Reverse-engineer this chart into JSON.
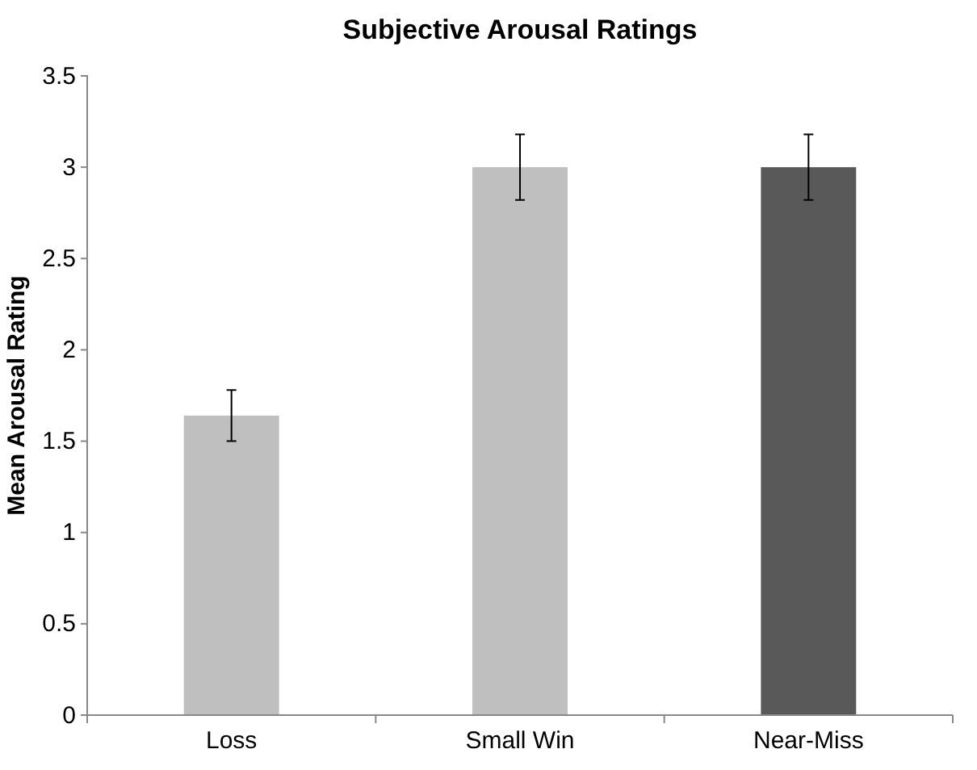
{
  "chart_data": {
    "type": "bar",
    "title": "Subjective Arousal Ratings",
    "ylabel": "Mean Arousal Rating",
    "categories": [
      "Loss",
      "Small Win",
      "Near-Miss"
    ],
    "values": [
      1.64,
      3.0,
      3.0
    ],
    "colors": [
      "#bfbfbf",
      "#bfbfbf",
      "#595959"
    ],
    "errors": [
      0.14,
      0.18,
      0.18
    ],
    "ylim": [
      0,
      3.5
    ],
    "yticks": [
      0,
      0.5,
      1,
      1.5,
      2,
      2.5,
      3,
      3.5
    ],
    "grid": false
  }
}
